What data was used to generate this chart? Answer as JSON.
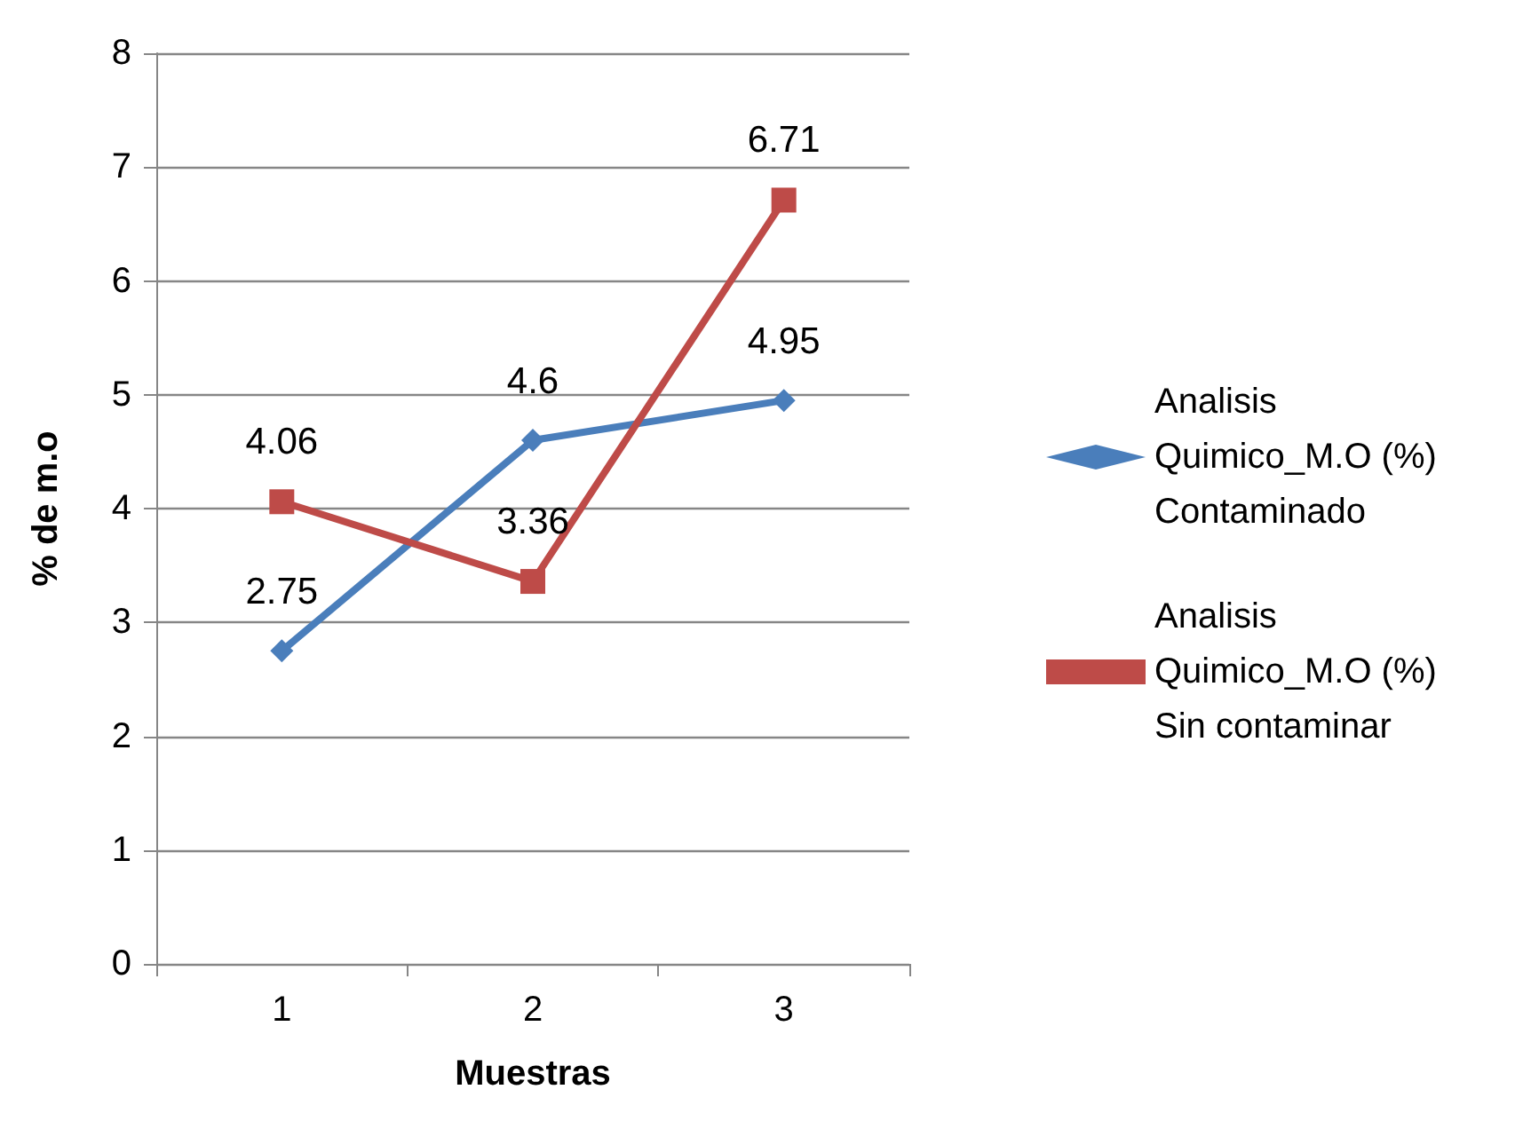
{
  "chart_data": {
    "type": "line",
    "xlabel": "Muestras",
    "ylabel": "% de m.o",
    "categories": [
      "1",
      "2",
      "3"
    ],
    "series": [
      {
        "name": "Analisis Quimico_M.O (%) Contaminado",
        "color": "#4a7ebb",
        "marker": "diamond",
        "values": [
          2.75,
          4.6,
          4.95
        ]
      },
      {
        "name": "Analisis Quimico_M.O (%) Sin contaminar",
        "color": "#be4b48",
        "marker": "square",
        "values": [
          4.06,
          3.36,
          6.71
        ]
      }
    ],
    "ylim": [
      0,
      8
    ],
    "yticks": [
      0,
      1,
      2,
      3,
      4,
      5,
      6,
      7,
      8
    ],
    "grid": "y",
    "legend": "right",
    "data_labels": true,
    "line_style": "solid"
  }
}
